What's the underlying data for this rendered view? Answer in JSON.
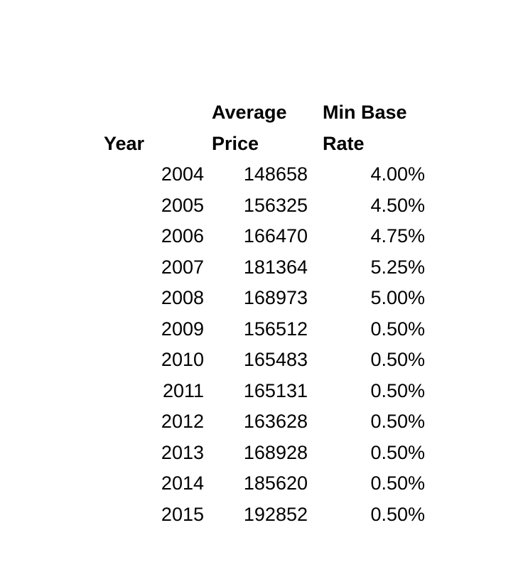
{
  "headers": {
    "year": "Year",
    "avg_price_line1": "Average",
    "avg_price_line2": "Price",
    "min_base_line1": "Min Base",
    "min_base_line2": "Rate"
  },
  "colors": {
    "text": "#000000",
    "background": "#ffffff"
  },
  "chart_data": {
    "type": "table",
    "title": "",
    "columns": [
      "Year",
      "Average Price",
      "Min Base Rate"
    ],
    "rows": [
      [
        "2004",
        "148658",
        "4.00%"
      ],
      [
        "2005",
        "156325",
        "4.50%"
      ],
      [
        "2006",
        "166470",
        "4.75%"
      ],
      [
        "2007",
        "181364",
        "5.25%"
      ],
      [
        "2008",
        "168973",
        "5.00%"
      ],
      [
        "2009",
        "156512",
        "0.50%"
      ],
      [
        "2010",
        "165483",
        "0.50%"
      ],
      [
        "2011",
        "165131",
        "0.50%"
      ],
      [
        "2012",
        "163628",
        "0.50%"
      ],
      [
        "2013",
        "168928",
        "0.50%"
      ],
      [
        "2014",
        "185620",
        "0.50%"
      ],
      [
        "2015",
        "192852",
        "0.50%"
      ]
    ],
    "years": [
      2004,
      2005,
      2006,
      2007,
      2008,
      2009,
      2010,
      2011,
      2012,
      2013,
      2014,
      2015
    ],
    "average_price": [
      148658,
      156325,
      166470,
      181364,
      168973,
      156512,
      165483,
      165131,
      163628,
      168928,
      185620,
      192852
    ],
    "min_base_rate_pct": [
      4.0,
      4.5,
      4.75,
      5.25,
      5.0,
      0.5,
      0.5,
      0.5,
      0.5,
      0.5,
      0.5,
      0.5
    ]
  }
}
